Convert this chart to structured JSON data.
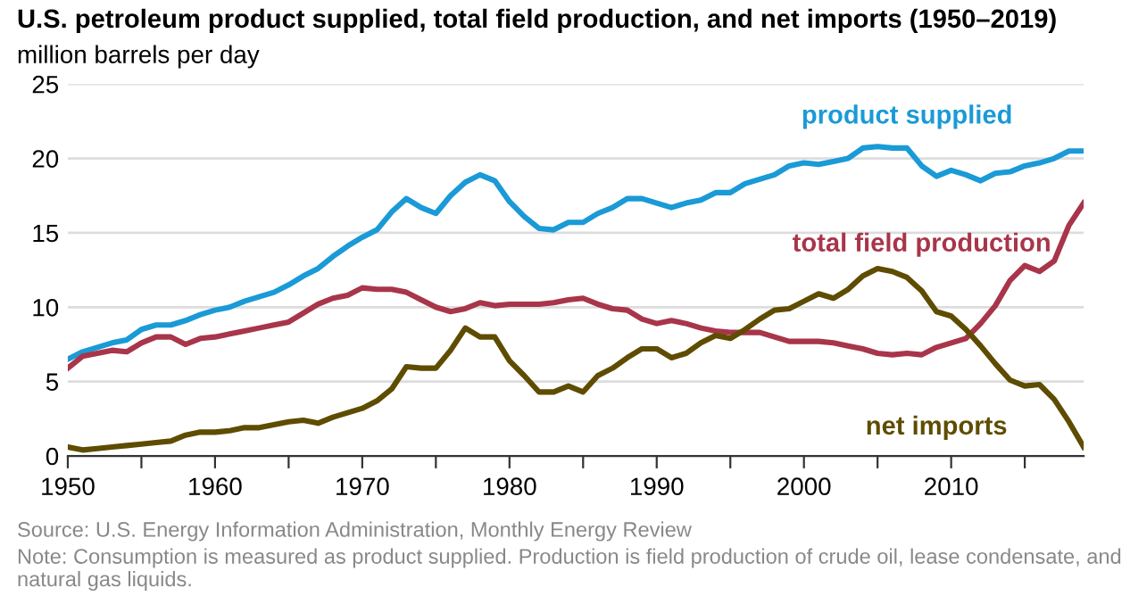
{
  "chart_data": {
    "type": "line",
    "title": "U.S. petroleum product supplied, total field production, and net imports (1950–2019)",
    "ylabel": "million barrels per day",
    "x": [
      1950,
      1951,
      1952,
      1953,
      1954,
      1955,
      1956,
      1957,
      1958,
      1959,
      1960,
      1961,
      1962,
      1963,
      1964,
      1965,
      1966,
      1967,
      1968,
      1969,
      1970,
      1971,
      1972,
      1973,
      1974,
      1975,
      1976,
      1977,
      1978,
      1979,
      1980,
      1981,
      1982,
      1983,
      1984,
      1985,
      1986,
      1987,
      1988,
      1989,
      1990,
      1991,
      1992,
      1993,
      1994,
      1995,
      1996,
      1997,
      1998,
      1999,
      2000,
      2001,
      2002,
      2003,
      2004,
      2005,
      2006,
      2007,
      2008,
      2009,
      2010,
      2011,
      2012,
      2013,
      2014,
      2015,
      2016,
      2017,
      2018,
      2019
    ],
    "series": [
      {
        "name": "product supplied",
        "color": "#1a9ad6",
        "values": [
          6.5,
          7.0,
          7.3,
          7.6,
          7.8,
          8.5,
          8.8,
          8.8,
          9.1,
          9.5,
          9.8,
          10.0,
          10.4,
          10.7,
          11.0,
          11.5,
          12.1,
          12.6,
          13.4,
          14.1,
          14.7,
          15.2,
          16.4,
          17.3,
          16.7,
          16.3,
          17.5,
          18.4,
          18.9,
          18.5,
          17.1,
          16.1,
          15.3,
          15.2,
          15.7,
          15.7,
          16.3,
          16.7,
          17.3,
          17.3,
          17.0,
          16.7,
          17.0,
          17.2,
          17.7,
          17.7,
          18.3,
          18.6,
          18.9,
          19.5,
          19.7,
          19.6,
          19.8,
          20.0,
          20.7,
          20.8,
          20.7,
          20.7,
          19.5,
          18.8,
          19.2,
          18.9,
          18.5,
          19.0,
          19.1,
          19.5,
          19.7,
          20.0,
          20.5,
          20.5
        ]
      },
      {
        "name": "total field production",
        "color": "#a8354a",
        "values": [
          5.9,
          6.7,
          6.9,
          7.1,
          7.0,
          7.6,
          8.0,
          8.0,
          7.5,
          7.9,
          8.0,
          8.2,
          8.4,
          8.6,
          8.8,
          9.0,
          9.6,
          10.2,
          10.6,
          10.8,
          11.3,
          11.2,
          11.2,
          11.0,
          10.5,
          10.0,
          9.7,
          9.9,
          10.3,
          10.1,
          10.2,
          10.2,
          10.2,
          10.3,
          10.5,
          10.6,
          10.2,
          9.9,
          9.8,
          9.2,
          8.9,
          9.1,
          8.9,
          8.6,
          8.4,
          8.3,
          8.3,
          8.3,
          8.0,
          7.7,
          7.7,
          7.7,
          7.6,
          7.4,
          7.2,
          6.9,
          6.8,
          6.9,
          6.8,
          7.3,
          7.6,
          7.9,
          8.9,
          10.1,
          11.8,
          12.8,
          12.4,
          13.1,
          15.5,
          17.0
        ]
      },
      {
        "name": "net imports",
        "color": "#5e4c00",
        "values": [
          0.6,
          0.4,
          0.5,
          0.6,
          0.7,
          0.8,
          0.9,
          1.0,
          1.4,
          1.6,
          1.6,
          1.7,
          1.9,
          1.9,
          2.1,
          2.3,
          2.4,
          2.2,
          2.6,
          2.9,
          3.2,
          3.7,
          4.5,
          6.0,
          5.9,
          5.9,
          7.1,
          8.6,
          8.0,
          8.0,
          6.4,
          5.4,
          4.3,
          4.3,
          4.7,
          4.3,
          5.4,
          5.9,
          6.6,
          7.2,
          7.2,
          6.6,
          6.9,
          7.6,
          8.1,
          7.9,
          8.5,
          9.2,
          9.8,
          9.9,
          10.4,
          10.9,
          10.6,
          11.2,
          12.1,
          12.6,
          12.4,
          12.0,
          11.1,
          9.7,
          9.4,
          8.5,
          7.4,
          6.2,
          5.1,
          4.7,
          4.8,
          3.8,
          2.3,
          0.6
        ]
      }
    ],
    "xlim": [
      1950,
      2019
    ],
    "xticks": [
      1950,
      {
        "value": 1955,
        "label": null
      },
      1960,
      {
        "value": 1965,
        "label": null
      },
      1970,
      {
        "value": 1975,
        "label": null
      },
      1980,
      {
        "value": 1985,
        "label": null
      },
      1990,
      {
        "value": 1995,
        "label": null
      },
      2000,
      {
        "value": 2005,
        "label": null
      },
      2010,
      {
        "value": 2015,
        "label": null
      }
    ],
    "ylim": [
      0,
      25
    ],
    "yticks": [
      0,
      5,
      10,
      15,
      20,
      25
    ],
    "grid": "y",
    "legend": false,
    "marker": "none",
    "line_style": "solid",
    "annotations": [
      "Source: U.S. Energy Information Administration, Monthly Energy Review",
      "Note: Consumption is measured as product supplied. Production is field production of crude oil, lease condensate, and natural gas liquids."
    ]
  }
}
